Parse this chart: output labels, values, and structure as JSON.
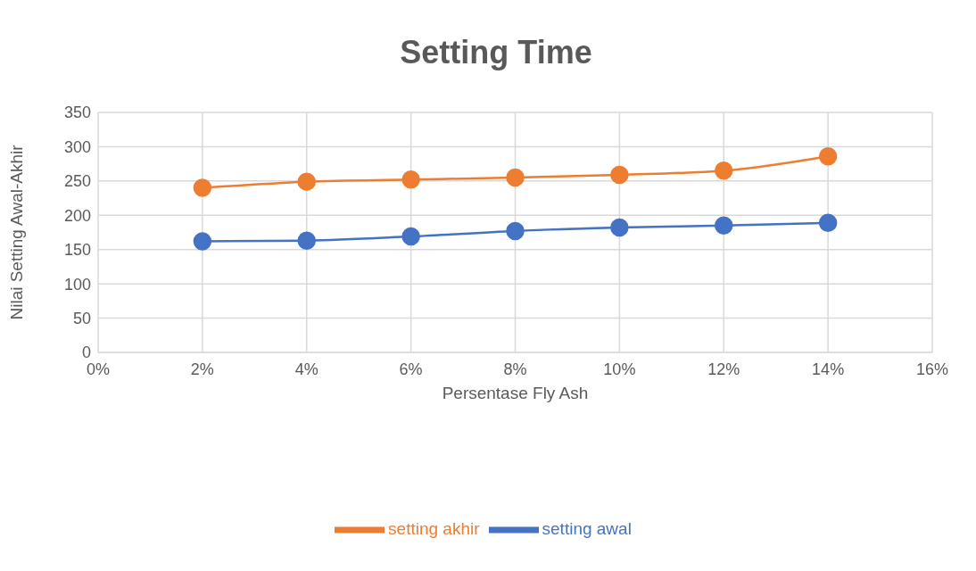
{
  "chart_data": {
    "type": "line",
    "title": "Setting Time",
    "xlabel": "Persentase Fly Ash",
    "ylabel": "Nilai Setting Awal-Akhir",
    "x": [
      2,
      4,
      6,
      8,
      10,
      12,
      14
    ],
    "series": [
      {
        "name": "setting awal",
        "color": "#4472c4",
        "values": [
          162,
          163,
          169,
          177,
          182,
          185,
          189
        ]
      },
      {
        "name": "setting akhir",
        "color": "#ed7d31",
        "values": [
          240,
          249,
          252,
          255,
          259,
          265,
          286
        ]
      }
    ],
    "xlim": [
      0,
      16
    ],
    "xticks": [
      {
        "value": 0,
        "label": "0%"
      },
      {
        "value": 2,
        "label": "2%"
      },
      {
        "value": 4,
        "label": "4%"
      },
      {
        "value": 6,
        "label": "6%"
      },
      {
        "value": 8,
        "label": "8%"
      },
      {
        "value": 10,
        "label": "10%"
      },
      {
        "value": 12,
        "label": "12%"
      },
      {
        "value": 14,
        "label": "14%"
      },
      {
        "value": 16,
        "label": "16%"
      }
    ],
    "ylim": [
      0,
      350
    ],
    "yticks": [
      0,
      50,
      100,
      150,
      200,
      250,
      300,
      350
    ],
    "grid": true,
    "legend": "bottom",
    "marker": "circle"
  }
}
